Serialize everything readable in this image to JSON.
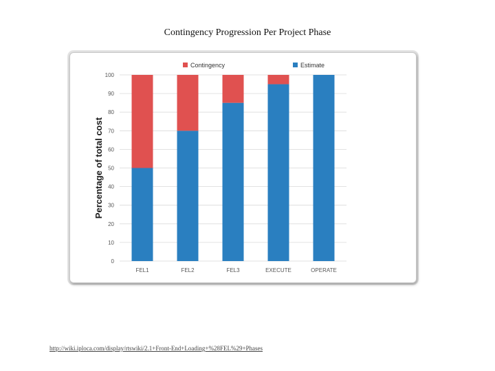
{
  "page": {
    "title": "Contingency Progression Per Project Phase",
    "source_url": "http://wiki.iploca.com/display/rtswiki/2.1+Front-End+Loading+%28FEL%29+Phases"
  },
  "colors": {
    "contingency": "#e05150",
    "estimate": "#2a7fc0",
    "grid": "#d9d9d9",
    "axis_text": "#555555"
  },
  "chart_data": {
    "type": "bar",
    "stacked": true,
    "title": "",
    "xlabel": "",
    "ylabel": "Percentage of total cost",
    "ylim": [
      0,
      100
    ],
    "yticks": [
      0,
      10,
      20,
      30,
      40,
      50,
      60,
      70,
      80,
      90,
      100
    ],
    "grid": true,
    "legend": "top",
    "categories": [
      "FEL1",
      "FEL2",
      "FEL3",
      "EXECUTE",
      "OPERATE"
    ],
    "series": [
      {
        "name": "Estimate",
        "color": "#2a7fc0",
        "values": [
          50,
          70,
          85,
          95,
          100
        ]
      },
      {
        "name": "Contingency",
        "color": "#e05150",
        "values": [
          50,
          30,
          15,
          5,
          0
        ]
      }
    ],
    "legend_order": [
      "Contingency",
      "Estimate"
    ]
  }
}
